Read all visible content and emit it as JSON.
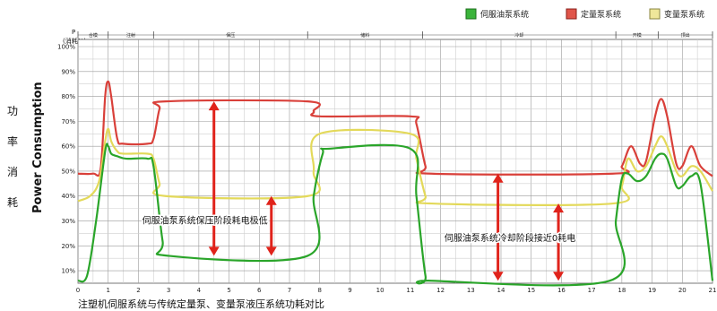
{
  "chart_data": {
    "type": "line",
    "caption": "注塑机伺服系统与传统定量泵、变量泵液压系统功耗对比",
    "ylabel_cn": [
      "功",
      "率",
      "消",
      "耗"
    ],
    "ylabel_en": "Power Consumption",
    "y_axis_top_label": "P",
    "y_axis_unit": "(消耗%)",
    "x_ticks": [
      "0",
      "1",
      "2",
      "3",
      "4",
      "5",
      "6",
      "7",
      "8",
      "9",
      "10",
      "11",
      "12",
      "13",
      "14",
      "15",
      "16",
      "17",
      "18",
      "19",
      "20",
      "21"
    ],
    "y_ticks": [
      "10%",
      "20%",
      "30%",
      "40%",
      "50%",
      "60%",
      "70%",
      "80%",
      "90%",
      "100%"
    ],
    "xlim": [
      0,
      21
    ],
    "ylim": [
      5,
      100
    ],
    "grid": true,
    "legend_position": "top-right",
    "legend": [
      {
        "name": "伺服油泵系统",
        "color": "#2db52d"
      },
      {
        "name": "定量泵系统",
        "color": "#d32f2f"
      },
      {
        "name": "变量泵系统",
        "color": "#e6dd6a"
      }
    ],
    "phases": [
      {
        "label": "合模",
        "start": 0,
        "end": 1
      },
      {
        "label": "注射",
        "start": 1,
        "end": 2.5
      },
      {
        "label": "保压",
        "start": 2.5,
        "end": 7.6
      },
      {
        "label": "储料",
        "start": 7.6,
        "end": 11.4
      },
      {
        "label": "冷却",
        "start": 11.4,
        "end": 17.8
      },
      {
        "label": "开模",
        "start": 17.8,
        "end": 19.2
      },
      {
        "label": "顶出",
        "start": 19.2,
        "end": 21
      }
    ],
    "series": [
      {
        "name": "定量泵系统",
        "color": "#d9403a",
        "points": [
          [
            0,
            49
          ],
          [
            0.5,
            49
          ],
          [
            0.75,
            51
          ],
          [
            0.9,
            80
          ],
          [
            1.0,
            86
          ],
          [
            1.1,
            80
          ],
          [
            1.3,
            63
          ],
          [
            1.5,
            61
          ],
          [
            2.3,
            61
          ],
          [
            2.5,
            63
          ],
          [
            2.7,
            75
          ],
          [
            2.9,
            78
          ],
          [
            7.6,
            78
          ],
          [
            7.8,
            74
          ],
          [
            8.0,
            72
          ],
          [
            11.0,
            72
          ],
          [
            11.2,
            69
          ],
          [
            11.5,
            52
          ],
          [
            11.7,
            49
          ],
          [
            17.7,
            49
          ],
          [
            18.0,
            52
          ],
          [
            18.3,
            60
          ],
          [
            18.6,
            53
          ],
          [
            18.8,
            54
          ],
          [
            19.1,
            72
          ],
          [
            19.3,
            79
          ],
          [
            19.5,
            72
          ],
          [
            19.8,
            53
          ],
          [
            20.0,
            52
          ],
          [
            20.3,
            60
          ],
          [
            20.6,
            52
          ],
          [
            21,
            48
          ]
        ]
      },
      {
        "name": "变量泵系统",
        "color": "#e3d95a",
        "points": [
          [
            0,
            38
          ],
          [
            0.4,
            40
          ],
          [
            0.7,
            46
          ],
          [
            0.9,
            62
          ],
          [
            1.0,
            67
          ],
          [
            1.1,
            62
          ],
          [
            1.3,
            58
          ],
          [
            1.5,
            57
          ],
          [
            2.3,
            57
          ],
          [
            2.5,
            55
          ],
          [
            2.7,
            45
          ],
          [
            2.9,
            40
          ],
          [
            7.6,
            40
          ],
          [
            7.8,
            50
          ],
          [
            8.0,
            65
          ],
          [
            11.0,
            65
          ],
          [
            11.2,
            55
          ],
          [
            11.5,
            40
          ],
          [
            11.7,
            37
          ],
          [
            17.7,
            37
          ],
          [
            18.0,
            44
          ],
          [
            18.2,
            55
          ],
          [
            18.5,
            50
          ],
          [
            18.8,
            52
          ],
          [
            19.1,
            60
          ],
          [
            19.3,
            64
          ],
          [
            19.5,
            60
          ],
          [
            19.8,
            50
          ],
          [
            20.0,
            48
          ],
          [
            20.3,
            52
          ],
          [
            20.6,
            50
          ],
          [
            21,
            42
          ]
        ]
      },
      {
        "name": "伺服油泵系统",
        "color": "#2aa52a",
        "points": [
          [
            0,
            6
          ],
          [
            0.3,
            8
          ],
          [
            0.6,
            30
          ],
          [
            0.9,
            58
          ],
          [
            1.0,
            60
          ],
          [
            1.1,
            57
          ],
          [
            1.3,
            56
          ],
          [
            1.6,
            55
          ],
          [
            2.3,
            55
          ],
          [
            2.5,
            52
          ],
          [
            2.8,
            22
          ],
          [
            3.0,
            16
          ],
          [
            7.6,
            16
          ],
          [
            7.8,
            40
          ],
          [
            8.1,
            57
          ],
          [
            8.3,
            59
          ],
          [
            11.0,
            59
          ],
          [
            11.2,
            40
          ],
          [
            11.5,
            8
          ],
          [
            11.7,
            6
          ],
          [
            17.6,
            6
          ],
          [
            17.8,
            30
          ],
          [
            18.0,
            47
          ],
          [
            18.2,
            49
          ],
          [
            18.5,
            46
          ],
          [
            18.8,
            48
          ],
          [
            19.1,
            55
          ],
          [
            19.3,
            57
          ],
          [
            19.5,
            55
          ],
          [
            19.8,
            44
          ],
          [
            20.0,
            44
          ],
          [
            20.3,
            48
          ],
          [
            20.6,
            45
          ],
          [
            21,
            6
          ]
        ]
      }
    ],
    "annotations": [
      {
        "text": "伺服油泵系统保压阶段耗电极低",
        "x": 4.2,
        "y": 29
      },
      {
        "text": "伺服油泵系统冷却阶段接近0耗电",
        "x": 14.3,
        "y": 22
      }
    ],
    "arrows": [
      {
        "x": 4.5,
        "y1": 16,
        "y2": 78
      },
      {
        "x": 6.4,
        "y1": 16,
        "y2": 40
      },
      {
        "x": 13.9,
        "y1": 6,
        "y2": 49
      },
      {
        "x": 15.9,
        "y1": 6,
        "y2": 37
      }
    ]
  }
}
